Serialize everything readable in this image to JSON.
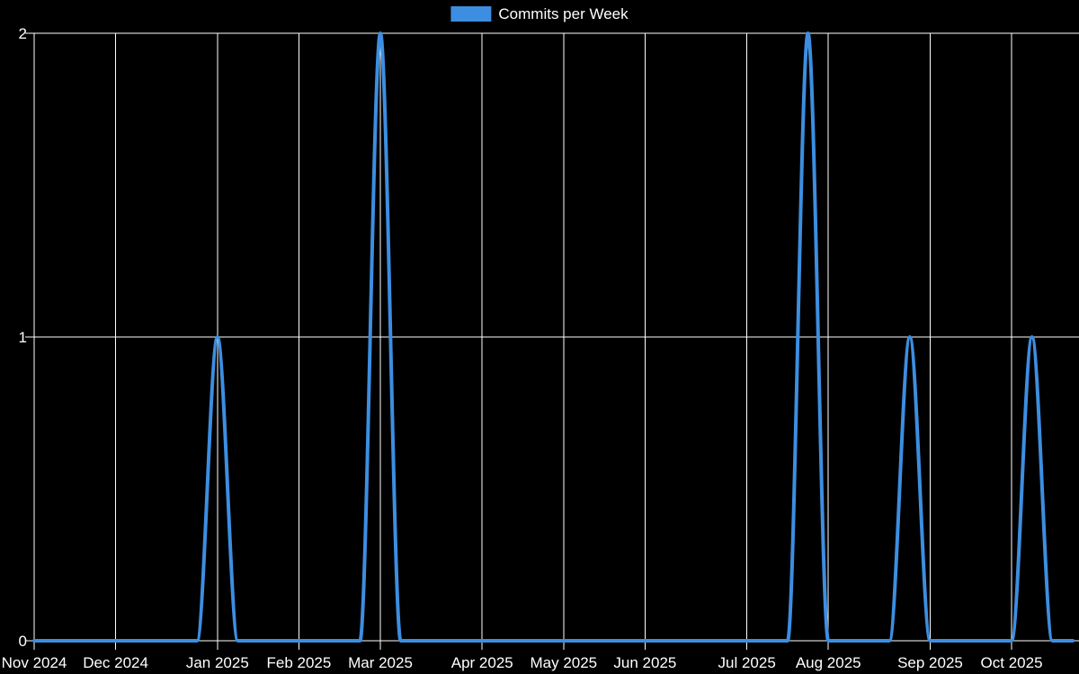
{
  "legend": {
    "label": "Commits per Week"
  },
  "colors": {
    "background": "#000000",
    "grid": "#ffffff",
    "text": "#ffffff",
    "line": "#3d8ee0"
  },
  "chart_data": {
    "type": "line",
    "title": "",
    "legend_position": "top-center",
    "x_unit": "week",
    "num_points": 52,
    "series": [
      {
        "name": "Commits per Week",
        "color": "#3d8ee0",
        "values": [
          0,
          0,
          0,
          0,
          0,
          0,
          0,
          0,
          0,
          1,
          0,
          0,
          0,
          0,
          0,
          0,
          0,
          2,
          0,
          0,
          0,
          0,
          0,
          0,
          0,
          0,
          0,
          0,
          0,
          0,
          0,
          0,
          0,
          0,
          0,
          0,
          0,
          0,
          2,
          0,
          0,
          0,
          0,
          1,
          0,
          0,
          0,
          0,
          0,
          1,
          0,
          0
        ]
      }
    ],
    "nonzero_points": [
      {
        "index": 9,
        "value": 1,
        "near_tick": "Jan 2025"
      },
      {
        "index": 17,
        "value": 2,
        "near_tick": "Mar 2025"
      },
      {
        "index": 38,
        "value": 2,
        "near_tick": "late Jul 2025"
      },
      {
        "index": 43,
        "value": 1,
        "near_tick": "late Aug 2025"
      },
      {
        "index": 49,
        "value": 1,
        "near_tick": "Oct 2025"
      }
    ],
    "x_tick_labels": [
      "Nov 2024",
      "Dec 2024",
      "Jan 2025",
      "Feb 2025",
      "Mar 2025",
      "Apr 2025",
      "May 2025",
      "Jun 2025",
      "Jul 2025",
      "Aug 2025",
      "Sep 2025",
      "Oct 2025"
    ],
    "x_tick_point_indices": [
      0,
      4,
      9,
      13,
      17,
      22,
      26,
      30,
      35,
      39,
      44,
      48
    ],
    "y_ticks": [
      0,
      1,
      2
    ],
    "ylim": [
      0,
      2
    ],
    "grid": true,
    "background": "black"
  }
}
